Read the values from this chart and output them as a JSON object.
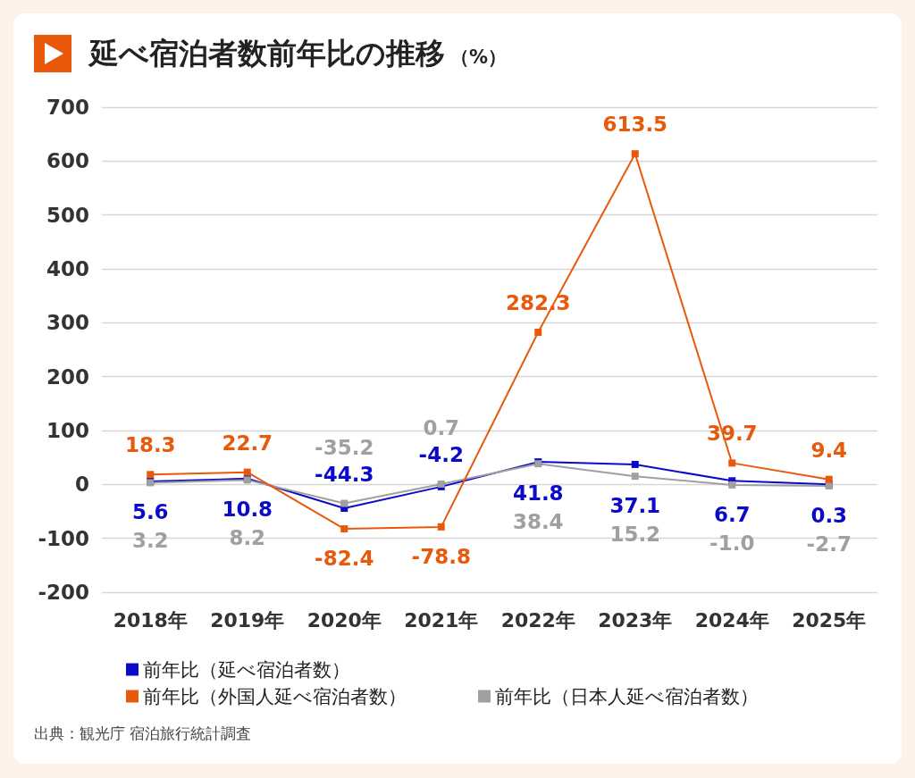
{
  "chart_data": {
    "type": "line",
    "title": "延べ宿泊者数前年比の推移",
    "ylabel": "（%）",
    "categories": [
      "2018年",
      "2019年",
      "2020年",
      "2021年",
      "2022年",
      "2023年",
      "2024年",
      "2025年"
    ],
    "series": [
      {
        "name": "前年比（延べ宿泊者数）",
        "color": "#0a0ac8",
        "values": [
          5.6,
          10.8,
          -44.3,
          -4.2,
          41.8,
          37.1,
          6.7,
          0.3
        ],
        "value_labels": [
          "5.6",
          "10.8",
          "-44.3",
          "-4.2",
          "41.8",
          "37.1",
          "6.7",
          "0.3"
        ]
      },
      {
        "name": "前年比（外国人延べ宿泊者数）",
        "color": "#e8590c",
        "values": [
          18.3,
          22.7,
          -82.4,
          -78.8,
          282.3,
          613.5,
          39.7,
          9.4
        ],
        "value_labels": [
          "18.3",
          "22.7",
          "-82.4",
          "-78.8",
          "282.3",
          "613.5",
          "39.7",
          "9.4"
        ]
      },
      {
        "name": "前年比（日本人延べ宿泊者数）",
        "color": "#a0a0a0",
        "values": [
          3.2,
          8.2,
          -35.2,
          0.7,
          38.4,
          15.2,
          -1.0,
          -2.7
        ],
        "value_labels": [
          "3.2",
          "8.2",
          "-35.2",
          "0.7",
          "38.4",
          "15.2",
          "-1.0",
          "-2.7"
        ]
      }
    ],
    "ylim": [
      -200,
      700
    ],
    "yticks": [
      -200,
      -100,
      0,
      100,
      200,
      300,
      400,
      500,
      600,
      700
    ],
    "grid": "y",
    "legend": "bottom",
    "marker": "square",
    "line_style": "solid",
    "annotations": [
      "出典：観光庁 宿泊旅行統計調査"
    ]
  }
}
